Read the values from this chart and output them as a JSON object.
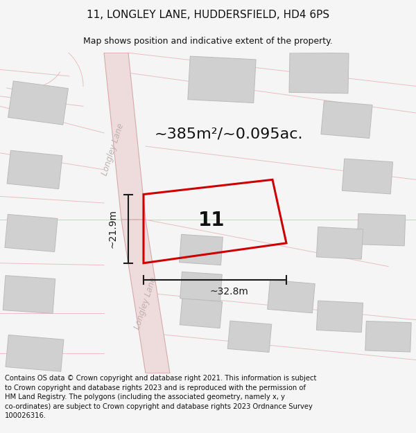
{
  "title": "11, LONGLEY LANE, HUDDERSFIELD, HD4 6PS",
  "subtitle": "Map shows position and indicative extent of the property.",
  "footer": "Contains OS data © Crown copyright and database right 2021. This information is subject to Crown copyright and database rights 2023 and is reproduced with the permission of HM Land Registry. The polygons (including the associated geometry, namely x, y co-ordinates) are subject to Crown copyright and database rights 2023 Ordnance Survey 100026316.",
  "area_label": "~385m²/~0.095ac.",
  "number_label": "11",
  "dim_width": "~32.8m",
  "dim_height": "~21.9m",
  "road_label": "Longley Lane",
  "bg_color": "#f5f5f5",
  "map_bg": "#ffffff",
  "road_fill": "#eedcdc",
  "road_edge": "#d4aaaa",
  "faint_line": "#e8c0c0",
  "plot_color": "#cc0000",
  "building_fill": "#d0d0d0",
  "building_edge": "#bbbbbb",
  "dim_color": "#1a1a1a",
  "text_color": "#111111",
  "road_text_color": "#c0b0b0",
  "title_fs": 11,
  "subtitle_fs": 9,
  "footer_fs": 7.2,
  "area_fs": 16,
  "number_fs": 20,
  "dim_fs": 10,
  "road_fs": 8.5
}
